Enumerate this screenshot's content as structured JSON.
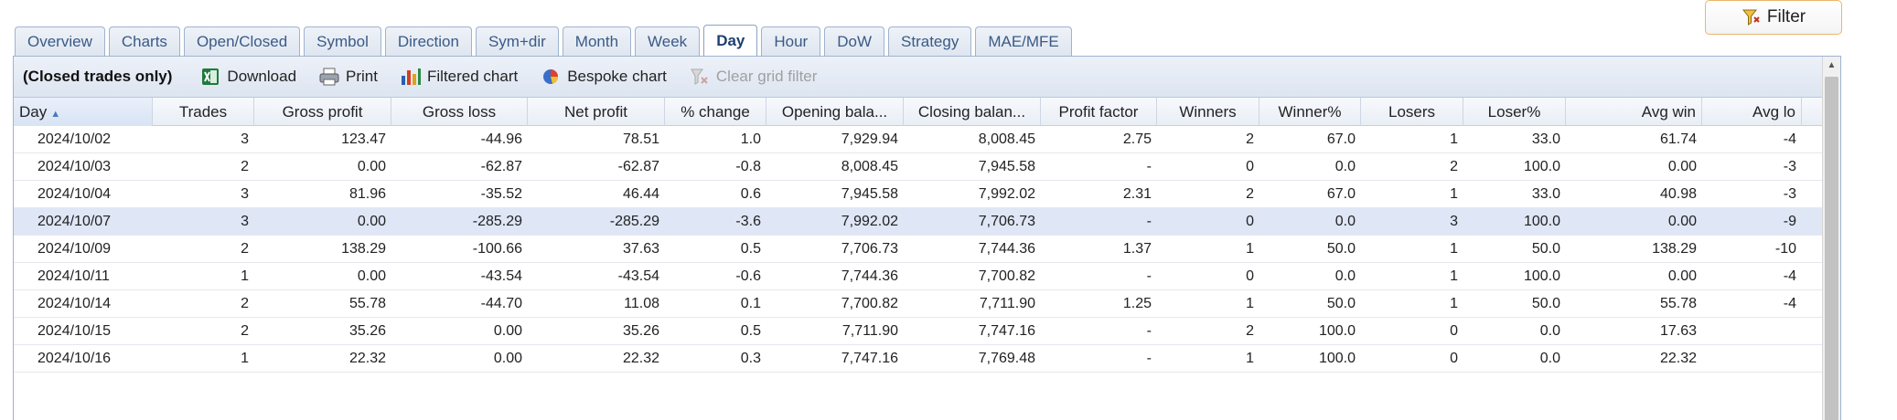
{
  "filter_button": {
    "label": "Filter"
  },
  "tabs": [
    {
      "label": "Overview"
    },
    {
      "label": "Charts"
    },
    {
      "label": "Open/Closed"
    },
    {
      "label": "Symbol"
    },
    {
      "label": "Direction"
    },
    {
      "label": "Sym+dir"
    },
    {
      "label": "Month"
    },
    {
      "label": "Week"
    },
    {
      "label": "Day",
      "active": true
    },
    {
      "label": "Hour"
    },
    {
      "label": "DoW"
    },
    {
      "label": "Strategy"
    },
    {
      "label": "MAE/MFE"
    }
  ],
  "toolbar": {
    "label": "(Closed trades only)",
    "download": "Download",
    "print": "Print",
    "filtered_chart": "Filtered chart",
    "bespoke_chart": "Bespoke chart",
    "clear_filter": "Clear grid filter"
  },
  "grid": {
    "headers": [
      "Day",
      "Trades",
      "Gross profit",
      "Gross loss",
      "Net profit",
      "% change",
      "Opening bala...",
      "Closing balan...",
      "Profit factor",
      "Winners",
      "Winner%",
      "Losers",
      "Loser%",
      "Avg win",
      "Avg lo"
    ],
    "rows": [
      [
        "2024/10/02",
        "3",
        "123.47",
        "-44.96",
        "78.51",
        "1.0",
        "7,929.94",
        "8,008.45",
        "2.75",
        "2",
        "67.0",
        "1",
        "33.0",
        "61.74",
        "-4"
      ],
      [
        "2024/10/03",
        "2",
        "0.00",
        "-62.87",
        "-62.87",
        "-0.8",
        "8,008.45",
        "7,945.58",
        "-",
        "0",
        "0.0",
        "2",
        "100.0",
        "0.00",
        "-3"
      ],
      [
        "2024/10/04",
        "3",
        "81.96",
        "-35.52",
        "46.44",
        "0.6",
        "7,945.58",
        "7,992.02",
        "2.31",
        "2",
        "67.0",
        "1",
        "33.0",
        "40.98",
        "-3"
      ],
      [
        "2024/10/07",
        "3",
        "0.00",
        "-285.29",
        "-285.29",
        "-3.6",
        "7,992.02",
        "7,706.73",
        "-",
        "0",
        "0.0",
        "3",
        "100.0",
        "0.00",
        "-9"
      ],
      [
        "2024/10/09",
        "2",
        "138.29",
        "-100.66",
        "37.63",
        "0.5",
        "7,706.73",
        "7,744.36",
        "1.37",
        "1",
        "50.0",
        "1",
        "50.0",
        "138.29",
        "-10"
      ],
      [
        "2024/10/11",
        "1",
        "0.00",
        "-43.54",
        "-43.54",
        "-0.6",
        "7,744.36",
        "7,700.82",
        "-",
        "0",
        "0.0",
        "1",
        "100.0",
        "0.00",
        "-4"
      ],
      [
        "2024/10/14",
        "2",
        "55.78",
        "-44.70",
        "11.08",
        "0.1",
        "7,700.82",
        "7,711.90",
        "1.25",
        "1",
        "50.0",
        "1",
        "50.0",
        "55.78",
        "-4"
      ],
      [
        "2024/10/15",
        "2",
        "35.26",
        "0.00",
        "35.26",
        "0.5",
        "7,711.90",
        "7,747.16",
        "-",
        "2",
        "100.0",
        "0",
        "0.0",
        "17.63",
        ""
      ],
      [
        "2024/10/16",
        "1",
        "22.32",
        "0.00",
        "22.32",
        "0.3",
        "7,747.16",
        "7,769.48",
        "-",
        "1",
        "100.0",
        "0",
        "0.0",
        "22.32",
        ""
      ]
    ],
    "selected_row": 3
  }
}
